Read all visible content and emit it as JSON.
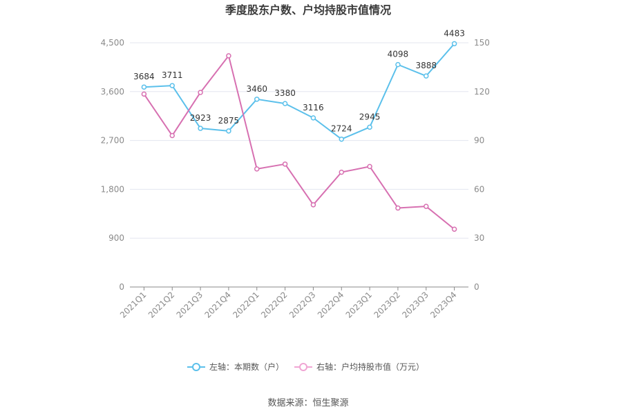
{
  "chart_data": {
    "type": "line",
    "title": "季度股东户数、户均持股市值情况",
    "categories": [
      "2021Q1",
      "2021Q2",
      "2021Q3",
      "2021Q4",
      "2022Q1",
      "2022Q2",
      "2022Q3",
      "2022Q4",
      "2023Q1",
      "2023Q2",
      "2023Q3",
      "2023Q4"
    ],
    "left_axis": {
      "min": 0,
      "max": 4500,
      "ticks": [
        "0",
        "900",
        "1,800",
        "2,700",
        "3,600",
        "4,500"
      ]
    },
    "right_axis": {
      "min": 0,
      "max": 150,
      "ticks": [
        "0",
        "30",
        "60",
        "90",
        "120",
        "150"
      ]
    },
    "series": [
      {
        "name": "左轴：本期数（户）",
        "axis": "left",
        "color": "#5bc0eb",
        "values": [
          3684,
          3711,
          2923,
          2875,
          3460,
          3380,
          3116,
          2724,
          2945,
          4098,
          3888,
          4483
        ],
        "labels": [
          "3684",
          "3711",
          "2923",
          "2875",
          "3460",
          "3380",
          "3116",
          "2724",
          "2945",
          "4098",
          "3888",
          "4483"
        ]
      },
      {
        "name": "右轴：户均持股市值（万元）",
        "axis": "right",
        "color": "#d770b1",
        "values": [
          118.5,
          93.0,
          119.5,
          142.0,
          72.5,
          75.5,
          50.5,
          70.5,
          74.0,
          48.5,
          49.5,
          35.5
        ]
      }
    ],
    "grid": true,
    "legend_position": "bottom"
  },
  "source": "数据来源：恒生聚源"
}
